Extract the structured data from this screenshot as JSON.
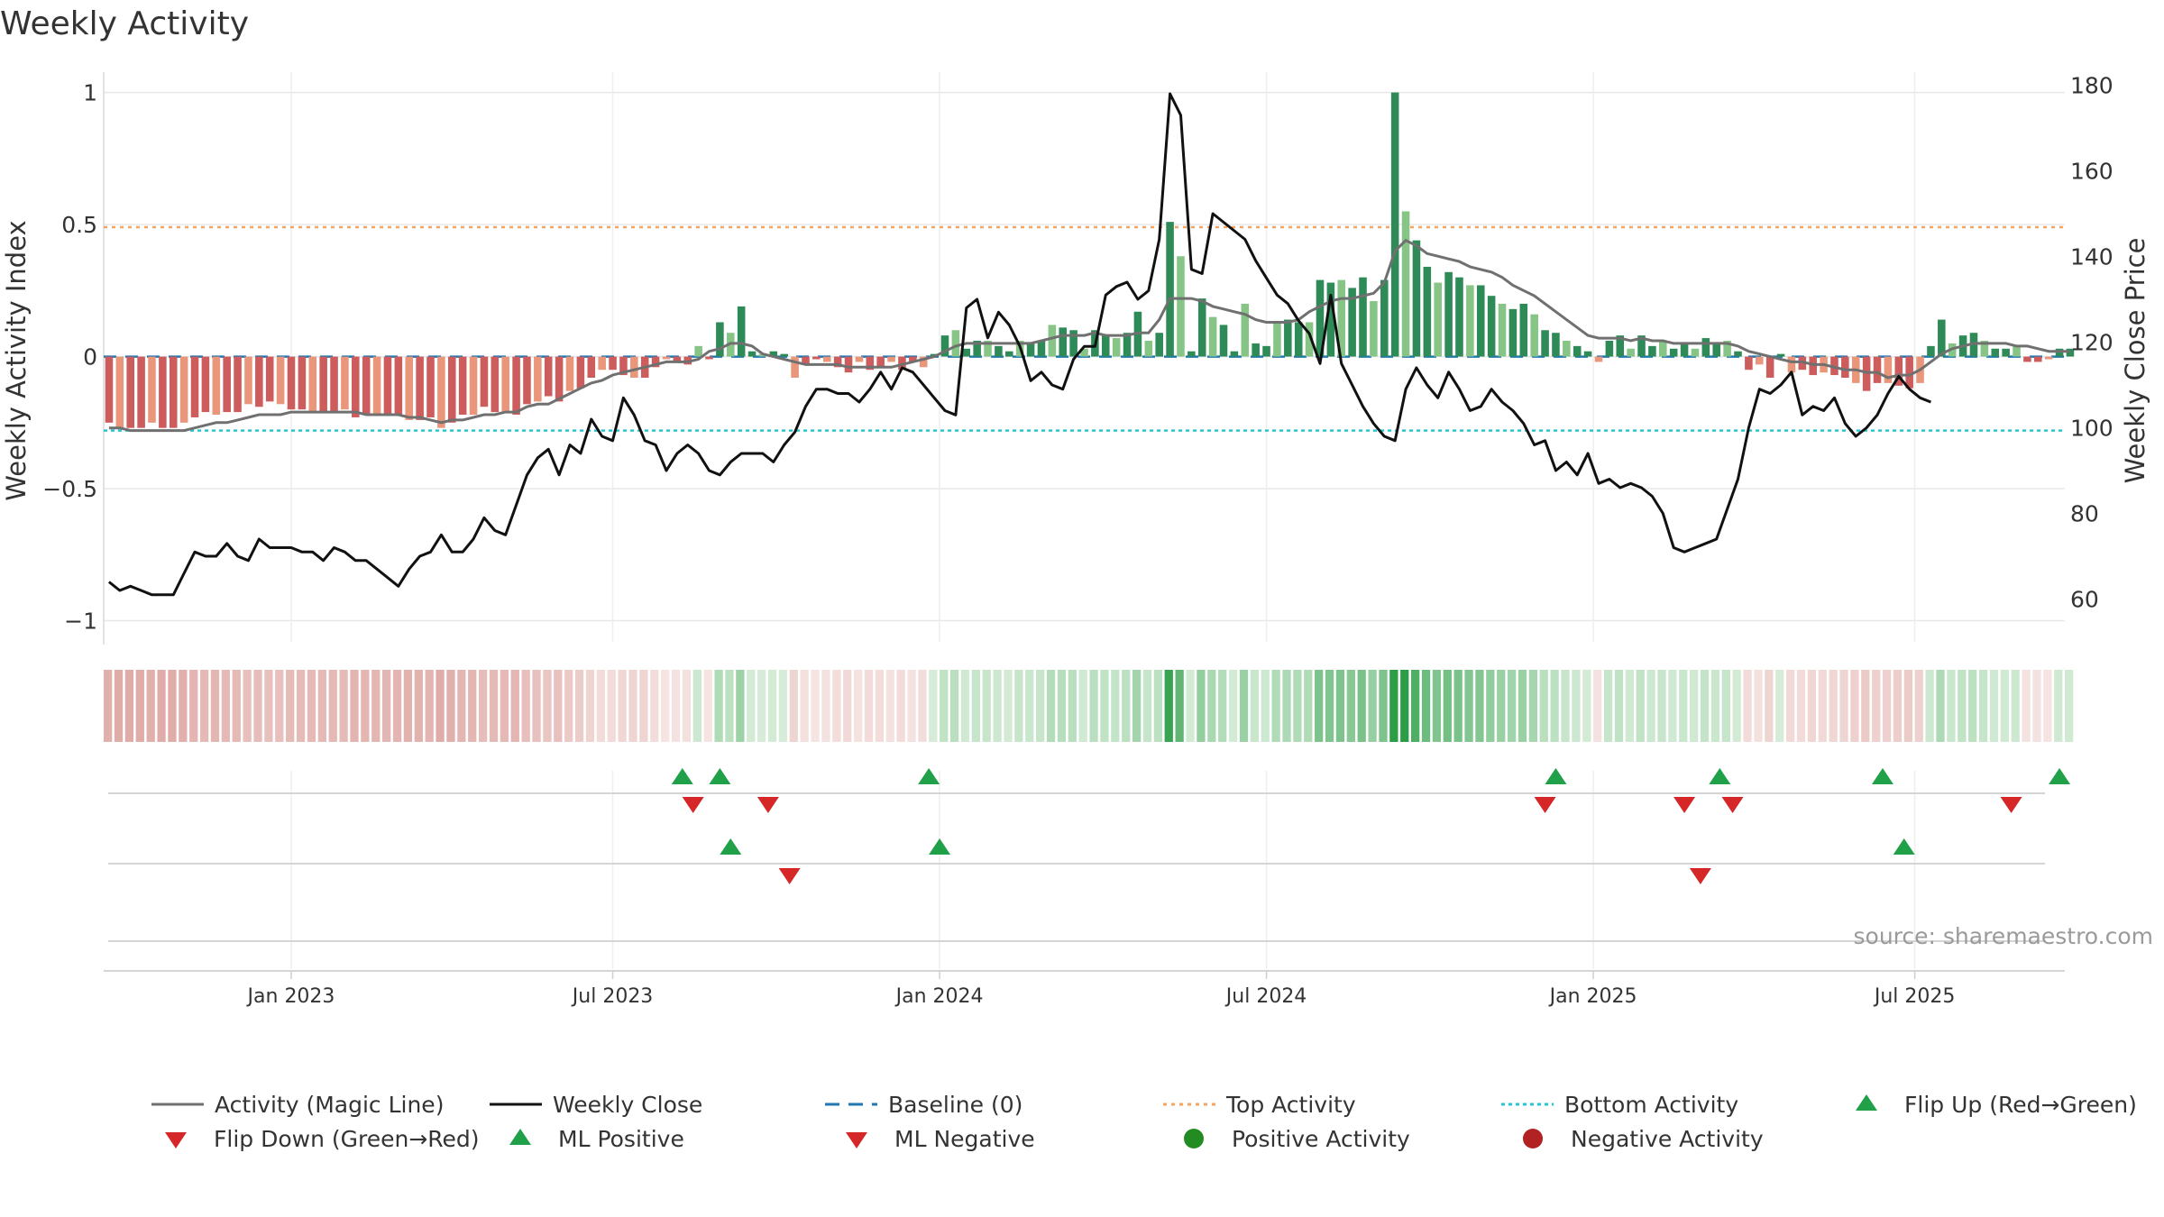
{
  "chart_data": {
    "type": "bar",
    "title": "Weekly Activity",
    "ylabel": "Weekly Activity Index",
    "y2label": "Weekly Close Price",
    "ylim": [
      -1.08,
      1.06
    ],
    "y2lim": [
      50,
      182
    ],
    "yticks": [
      {
        "v": 1,
        "label": "1"
      },
      {
        "v": 0.5,
        "label": "0.5"
      },
      {
        "v": 0,
        "label": "0"
      },
      {
        "v": -0.5,
        "label": "−0.5"
      },
      {
        "v": -1,
        "label": "−1"
      }
    ],
    "y2ticks": [
      {
        "v": 180,
        "label": "180"
      },
      {
        "v": 160,
        "label": "160"
      },
      {
        "v": 140,
        "label": "140"
      },
      {
        "v": 120,
        "label": "120"
      },
      {
        "v": 100,
        "label": "100"
      },
      {
        "v": 80,
        "label": "80"
      },
      {
        "v": 60,
        "label": "60"
      }
    ],
    "weeks": 183,
    "date_ticks": [
      {
        "w": 17.5,
        "label": "Jan 2023"
      },
      {
        "w": 47.5,
        "label": "Jul 2023"
      },
      {
        "w": 78,
        "label": "Jan 2024"
      },
      {
        "w": 108.5,
        "label": "Jul 2024"
      },
      {
        "w": 139,
        "label": "Jan 2025"
      },
      {
        "w": 169,
        "label": "Jul 2025"
      }
    ],
    "top_activity": 0.49,
    "bottom_activity": -0.28,
    "baseline": 0,
    "activity": [
      -0.25,
      -0.27,
      -0.27,
      -0.27,
      -0.25,
      -0.27,
      -0.27,
      -0.25,
      -0.23,
      -0.21,
      -0.22,
      -0.21,
      -0.21,
      -0.18,
      -0.19,
      -0.17,
      -0.18,
      -0.2,
      -0.2,
      -0.21,
      -0.21,
      -0.21,
      -0.2,
      -0.23,
      -0.22,
      -0.22,
      -0.22,
      -0.22,
      -0.24,
      -0.24,
      -0.23,
      -0.27,
      -0.25,
      -0.22,
      -0.22,
      -0.19,
      -0.21,
      -0.21,
      -0.22,
      -0.18,
      -0.17,
      -0.15,
      -0.17,
      -0.13,
      -0.12,
      -0.08,
      -0.05,
      -0.05,
      -0.07,
      -0.08,
      -0.08,
      -0.04,
      -0.01,
      -0.02,
      -0.03,
      0.04,
      -0.01,
      0.13,
      0.09,
      0.19,
      0.02,
      0.01,
      0.02,
      0.01,
      -0.08,
      -0.03,
      -0.01,
      -0.02,
      -0.04,
      -0.06,
      -0.02,
      -0.05,
      -0.04,
      -0.02,
      -0.05,
      -0.02,
      -0.04,
      0.01,
      0.08,
      0.1,
      0.03,
      0.06,
      0.06,
      0.04,
      0.02,
      0.06,
      0.05,
      0.06,
      0.12,
      0.11,
      0.1,
      0.03,
      0.1,
      0.08,
      0.07,
      0.09,
      0.17,
      0.06,
      0.09,
      0.51,
      0.38,
      0.02,
      0.22,
      0.15,
      0.12,
      0.02,
      0.2,
      0.05,
      0.04,
      0.13,
      0.14,
      0.13,
      0.13,
      0.29,
      0.28,
      0.29,
      0.26,
      0.3,
      0.21,
      0.29,
      1.0,
      0.55,
      0.44,
      0.34,
      0.28,
      0.32,
      0.3,
      0.27,
      0.27,
      0.23,
      0.2,
      0.18,
      0.2,
      0.16,
      0.1,
      0.09,
      0.06,
      0.04,
      0.02,
      -0.02,
      0.06,
      0.08,
      0.03,
      0.08,
      0.04,
      0.06,
      0.03,
      0.05,
      0.03,
      0.07,
      0.05,
      0.06,
      0.02,
      -0.05,
      -0.03,
      -0.08,
      0.01,
      -0.06,
      -0.05,
      -0.07,
      -0.06,
      -0.07,
      -0.08,
      -0.1,
      -0.13,
      -0.1,
      -0.1,
      -0.11,
      -0.12,
      -0.1,
      0.04,
      0.14,
      0.05,
      0.08,
      0.09,
      0.06,
      0.03,
      0.03,
      0.04,
      -0.02,
      -0.02,
      -0.01,
      0.03,
      0.03
    ],
    "magic_line": [
      -0.27,
      -0.27,
      -0.28,
      -0.28,
      -0.28,
      -0.28,
      -0.28,
      -0.28,
      -0.27,
      -0.26,
      -0.25,
      -0.25,
      -0.24,
      -0.23,
      -0.22,
      -0.22,
      -0.22,
      -0.21,
      -0.21,
      -0.21,
      -0.21,
      -0.21,
      -0.21,
      -0.21,
      -0.22,
      -0.22,
      -0.22,
      -0.22,
      -0.23,
      -0.23,
      -0.24,
      -0.25,
      -0.24,
      -0.24,
      -0.23,
      -0.22,
      -0.22,
      -0.21,
      -0.21,
      -0.19,
      -0.18,
      -0.18,
      -0.16,
      -0.14,
      -0.12,
      -0.1,
      -0.09,
      -0.07,
      -0.06,
      -0.05,
      -0.04,
      -0.03,
      -0.02,
      -0.02,
      -0.02,
      -0.01,
      0.02,
      0.03,
      0.05,
      0.05,
      0.04,
      0.01,
      0.0,
      -0.01,
      -0.02,
      -0.03,
      -0.03,
      -0.03,
      -0.03,
      -0.04,
      -0.04,
      -0.04,
      -0.04,
      -0.04,
      -0.03,
      -0.02,
      -0.01,
      0.0,
      0.02,
      0.04,
      0.05,
      0.05,
      0.05,
      0.05,
      0.05,
      0.05,
      0.05,
      0.06,
      0.07,
      0.08,
      0.08,
      0.08,
      0.09,
      0.08,
      0.08,
      0.08,
      0.09,
      0.09,
      0.14,
      0.22,
      0.22,
      0.22,
      0.21,
      0.19,
      0.18,
      0.17,
      0.16,
      0.14,
      0.13,
      0.13,
      0.13,
      0.14,
      0.17,
      0.19,
      0.21,
      0.22,
      0.22,
      0.23,
      0.24,
      0.28,
      0.4,
      0.44,
      0.42,
      0.39,
      0.38,
      0.37,
      0.36,
      0.34,
      0.33,
      0.32,
      0.3,
      0.27,
      0.25,
      0.23,
      0.2,
      0.17,
      0.14,
      0.11,
      0.08,
      0.07,
      0.07,
      0.07,
      0.06,
      0.07,
      0.06,
      0.06,
      0.05,
      0.05,
      0.05,
      0.05,
      0.05,
      0.05,
      0.04,
      0.02,
      0.01,
      0.0,
      -0.01,
      -0.02,
      -0.02,
      -0.03,
      -0.03,
      -0.04,
      -0.05,
      -0.05,
      -0.06,
      -0.06,
      -0.08,
      -0.07,
      -0.07,
      -0.05,
      -0.02,
      0.01,
      0.03,
      0.04,
      0.05,
      0.05,
      0.05,
      0.05,
      0.04,
      0.04,
      0.03,
      0.02,
      0.02,
      0.02
    ],
    "weekly_close": [
      64,
      62,
      63,
      62,
      61,
      61,
      61,
      66,
      71,
      70,
      70,
      73,
      70,
      69,
      74,
      72,
      72,
      72,
      71,
      71,
      69,
      72,
      71,
      69,
      69,
      67,
      65,
      63,
      67,
      70,
      71,
      75,
      71,
      71,
      74,
      79,
      76,
      75,
      82,
      89,
      93,
      95,
      89,
      96,
      94,
      102,
      98,
      97,
      107,
      103,
      97,
      96,
      90,
      94,
      96,
      94,
      90,
      89,
      92,
      94,
      94,
      94,
      92,
      96,
      99,
      105,
      109,
      109,
      108,
      108,
      106,
      109,
      113,
      109,
      114,
      113,
      110,
      107,
      104,
      103,
      128,
      130,
      121,
      127,
      124,
      119,
      111,
      113,
      110,
      109,
      116,
      119,
      119,
      131,
      133,
      134,
      130,
      132,
      144,
      178,
      173,
      137,
      136,
      150,
      148,
      146,
      144,
      139,
      135,
      131,
      129,
      125,
      122,
      115,
      131,
      115,
      110,
      105,
      101,
      98,
      97,
      109,
      114,
      110,
      107,
      113,
      109,
      104,
      105,
      109,
      106,
      104,
      101,
      96,
      97,
      90,
      92,
      89,
      94,
      87,
      88,
      86,
      87,
      86,
      84,
      80,
      72,
      71,
      72,
      73,
      74,
      81,
      88,
      100,
      109,
      108,
      110,
      113,
      103,
      105,
      104,
      107,
      101,
      98,
      100,
      103,
      108,
      112,
      109,
      107,
      106
    ]
  },
  "ribbon_levels": [
    -0.25,
    -0.27,
    -0.27,
    -0.27
  ],
  "signals": {
    "flip_up": [
      53.5,
      57,
      76.5,
      135,
      150.3,
      165.5,
      182
    ],
    "flip_down": [
      54.5,
      61.5,
      134,
      147,
      151.5,
      177.5
    ],
    "ml_positive": [
      58,
      77.5,
      167.5
    ],
    "ml_negative": [
      63.5,
      148.5
    ]
  },
  "source": "source: sharemaestro.com",
  "colors": {
    "pos_dark": "#2e8b57",
    "pos_light": "#86c586",
    "neg_dark": "#cd5c5c",
    "neg_light": "#e9967a",
    "magic_line": "#707070",
    "close_line": "#111111",
    "baseline": "#1f77b4",
    "top": "#f4a460",
    "bottom": "#20c9d9",
    "tri_up": "#21a04a",
    "tri_down": "#d62728",
    "dot_pos": "#228b22",
    "dot_neg": "#b22222"
  },
  "legend": [
    {
      "key": "magic",
      "label": "Activity (Magic Line)"
    },
    {
      "key": "close",
      "label": "Weekly Close"
    },
    {
      "key": "baseline",
      "label": "Baseline (0)"
    },
    {
      "key": "top",
      "label": "Top Activity"
    },
    {
      "key": "bottom",
      "label": "Bottom Activity"
    },
    {
      "key": "flipup",
      "label": "Flip Up (Red→Green)"
    },
    {
      "key": "flipdown",
      "label": "Flip Down (Green→Red)"
    },
    {
      "key": "mlpos",
      "label": "ML Positive"
    },
    {
      "key": "mlneg",
      "label": "ML Negative"
    },
    {
      "key": "dotpos",
      "label": "Positive Activity"
    },
    {
      "key": "dotneg",
      "label": "Negative Activity"
    }
  ]
}
